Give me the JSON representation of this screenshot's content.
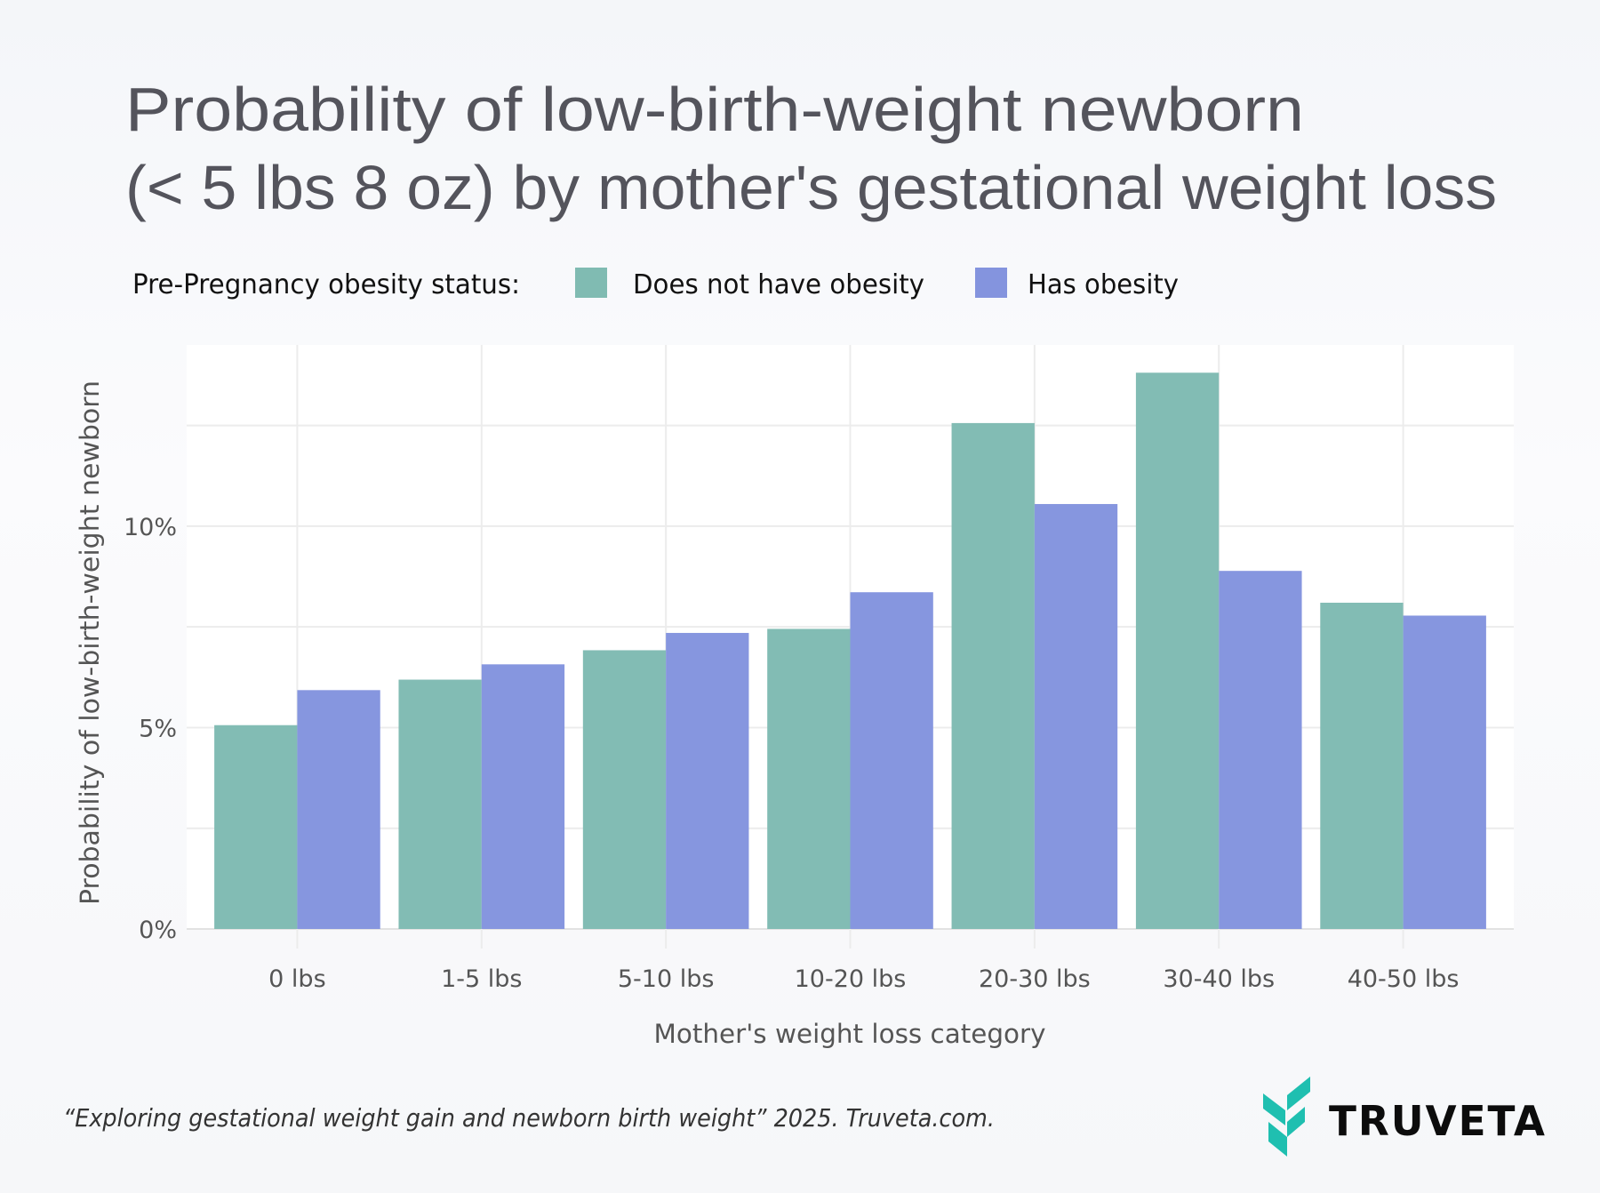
{
  "chart_data": {
    "type": "bar",
    "title": [
      "Probability of low-birth-weight newborn",
      "(< 5 lbs 8 oz) by mother's gestational weight loss"
    ],
    "legend_title": "Pre-Pregnancy obesity status:",
    "legend_position": "top-left",
    "xlabel": "Mother's weight loss category",
    "ylabel": "Probability of low-birth-weight newborn",
    "categories": [
      "0 lbs",
      "1-5 lbs",
      "5-10 lbs",
      "10-20 lbs",
      "20-30 lbs",
      "30-40 lbs",
      "40-50 lbs"
    ],
    "series": [
      {
        "name": "Does not have obesity",
        "color": "#80bbb2",
        "values": [
          5.06,
          6.19,
          6.92,
          7.45,
          12.56,
          13.81,
          8.1
        ]
      },
      {
        "name": "Has obesity",
        "color": "#8494de",
        "values": [
          5.93,
          6.57,
          7.35,
          8.36,
          10.55,
          8.89,
          7.78
        ]
      }
    ],
    "y_unit": "%",
    "yticks": [
      {
        "v": 0,
        "label": "0%"
      },
      {
        "v": 5,
        "label": "5%"
      },
      {
        "v": 10,
        "label": "10%"
      }
    ],
    "ylim": [
      0,
      14.5
    ],
    "grid": true
  },
  "footer": {
    "citation": "“Exploring gestational weight gain and newborn birth weight” 2025. Truveta.com.",
    "logo_text": "TRUVETA",
    "logo_color": "#1fbfb0"
  }
}
